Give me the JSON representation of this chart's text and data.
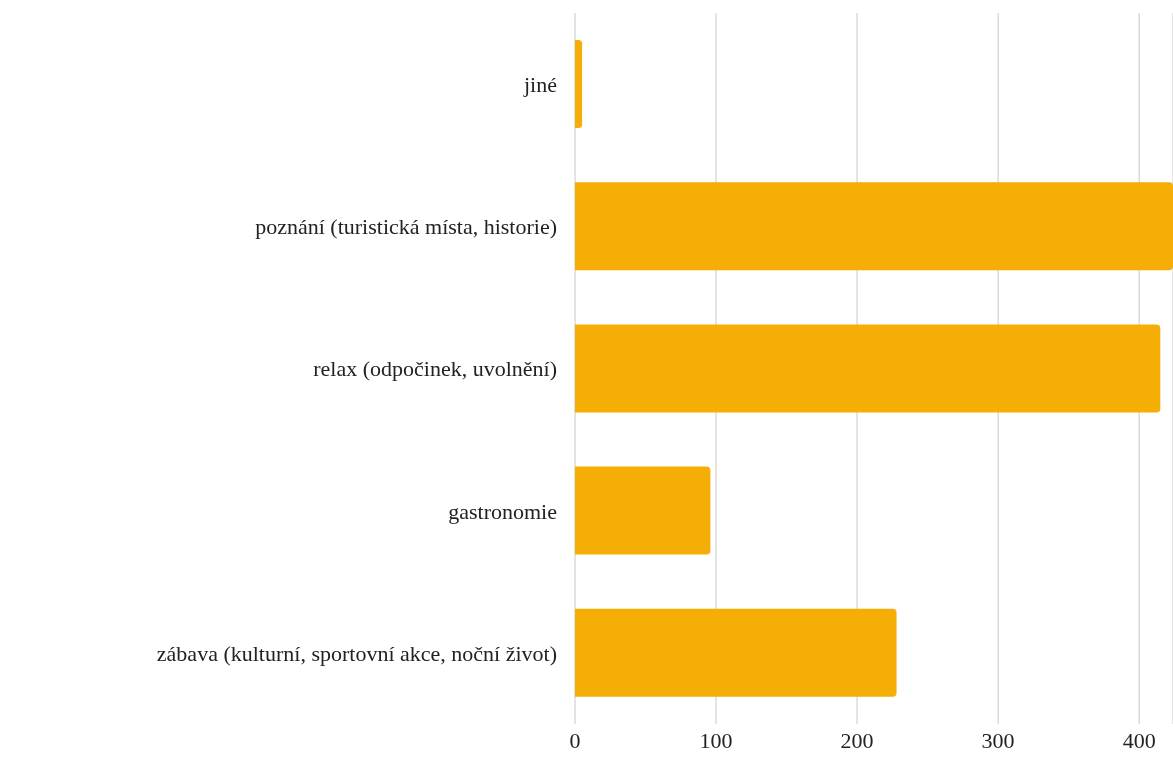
{
  "chart_data": {
    "type": "bar",
    "orientation": "horizontal",
    "categories": [
      "jiné",
      "poznání (turistická místa, historie)",
      "relax (odpočinek, uvolnění)",
      "gastronomie",
      "zábava (kulturní, sportovní akce, noční život)"
    ],
    "values": [
      5,
      424,
      415,
      96,
      228
    ],
    "color": "#f5ae06",
    "xlim": [
      0,
      424
    ],
    "xticks": [
      0,
      100,
      200,
      300,
      400
    ],
    "grid": "x"
  }
}
